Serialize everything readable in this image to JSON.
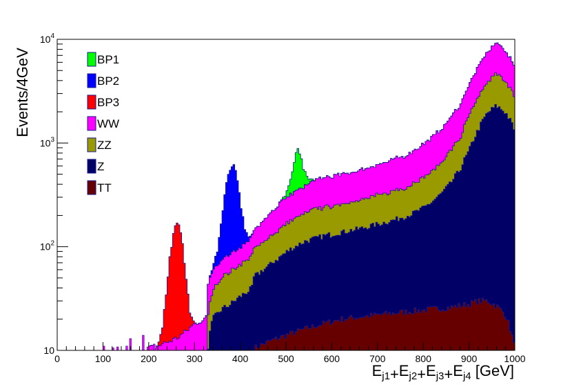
{
  "chart_data": {
    "type": "area",
    "stacked": true,
    "log_scale_y": true,
    "grid": false,
    "legend_placement": "top-left",
    "xlabel": {
      "base": "E",
      "terms": [
        "j1",
        "j2",
        "j3",
        "j4"
      ],
      "unit": "[GeV]"
    },
    "ylabel": "Events/4GeV",
    "xlim": [
      0,
      1000
    ],
    "ylim": [
      10,
      10000
    ],
    "bin_width": 4,
    "x_ticks": [
      "0",
      "100",
      "200",
      "300",
      "400",
      "500",
      "600",
      "700",
      "800",
      "900",
      "1000"
    ],
    "y_ticks": [
      {
        "value": 10,
        "base": "10",
        "exp": ""
      },
      {
        "value": 100,
        "base": "10",
        "exp": "2"
      },
      {
        "value": 1000,
        "base": "10",
        "exp": "3"
      },
      {
        "value": 10000,
        "base": "10",
        "exp": "4"
      }
    ],
    "series": [
      {
        "name": "TT",
        "color": "#660000",
        "x": [
          430,
          460,
          500,
          540,
          580,
          620,
          660,
          700,
          740,
          780,
          820,
          860,
          900,
          920,
          940,
          960,
          980,
          992,
          1000
        ],
        "y": [
          10.5,
          12,
          14,
          16,
          18,
          20,
          21,
          22,
          23,
          24,
          25,
          26,
          28,
          30,
          30,
          27,
          22,
          15,
          10
        ]
      },
      {
        "name": "Z",
        "color": "#000066",
        "x": [
          330,
          340,
          360,
          380,
          400,
          420,
          440,
          460,
          480,
          500,
          520,
          540,
          560,
          580,
          600,
          620,
          640,
          660,
          680,
          700,
          720,
          740,
          760,
          780,
          800,
          820,
          840,
          860,
          880,
          900,
          920,
          940,
          960,
          980,
          1000
        ],
        "y": [
          11,
          20,
          25,
          28,
          33,
          38,
          44,
          52,
          62,
          74,
          85,
          95,
          102,
          108,
          112,
          118,
          122,
          128,
          134,
          142,
          150,
          160,
          172,
          188,
          210,
          245,
          300,
          380,
          520,
          800,
          1300,
          1900,
          2250,
          1950,
          1300
        ]
      },
      {
        "name": "ZZ",
        "color": "#999900",
        "x": [
          330,
          360,
          400,
          440,
          480,
          520,
          560,
          600,
          640,
          680,
          720,
          760,
          800,
          840,
          880,
          920,
          960,
          980,
          1000
        ],
        "y": [
          11.5,
          26,
          34,
          46,
          65,
          89,
          107,
          117,
          128,
          140,
          157,
          180,
          220,
          315,
          545,
          1360,
          2350,
          2040,
          1360
        ]
      },
      {
        "name": "WW",
        "color": "#ff00ff",
        "x": [
          200,
          220,
          240,
          260,
          280,
          300,
          320,
          340,
          360,
          380,
          400,
          420,
          440,
          460,
          480,
          500,
          520,
          540,
          560,
          580,
          600,
          620,
          640,
          660,
          680,
          700,
          720,
          740,
          760,
          780,
          800,
          820,
          840,
          860,
          880,
          900,
          920,
          940,
          960,
          980,
          1000
        ],
        "y": [
          10.5,
          11,
          12,
          13,
          15,
          18,
          20,
          22,
          25,
          28,
          32,
          38,
          55,
          75,
          105,
          130,
          150,
          170,
          200,
          220,
          232,
          240,
          250,
          265,
          280,
          300,
          325,
          355,
          390,
          440,
          510,
          600,
          720,
          900,
          1200,
          1750,
          2600,
          3700,
          4500,
          3900,
          2500
        ]
      },
      {
        "name": "BP1",
        "color": "#00ff00",
        "x": [
          480,
          490,
          500,
          510,
          520,
          525,
          530,
          540,
          550,
          560,
          570
        ],
        "y": [
          0,
          5,
          25,
          120,
          380,
          560,
          440,
          150,
          40,
          8,
          0
        ]
      },
      {
        "name": "BP2",
        "color": "#0000ff",
        "x": [
          330,
          340,
          350,
          360,
          370,
          380,
          385,
          390,
          400,
          410,
          420,
          430
        ],
        "y": [
          0,
          5,
          25,
          110,
          340,
          515,
          530,
          440,
          170,
          40,
          6,
          0
        ]
      },
      {
        "name": "BP3",
        "color": "#ff0000",
        "x": [
          220,
          230,
          240,
          250,
          260,
          265,
          270,
          280,
          290,
          300
        ],
        "y": [
          0,
          5,
          25,
          90,
          150,
          155,
          120,
          40,
          6,
          0
        ]
      }
    ],
    "legend_order": [
      "BP1",
      "BP2",
      "BP3",
      "WW",
      "ZZ",
      "Z",
      "TT"
    ]
  }
}
